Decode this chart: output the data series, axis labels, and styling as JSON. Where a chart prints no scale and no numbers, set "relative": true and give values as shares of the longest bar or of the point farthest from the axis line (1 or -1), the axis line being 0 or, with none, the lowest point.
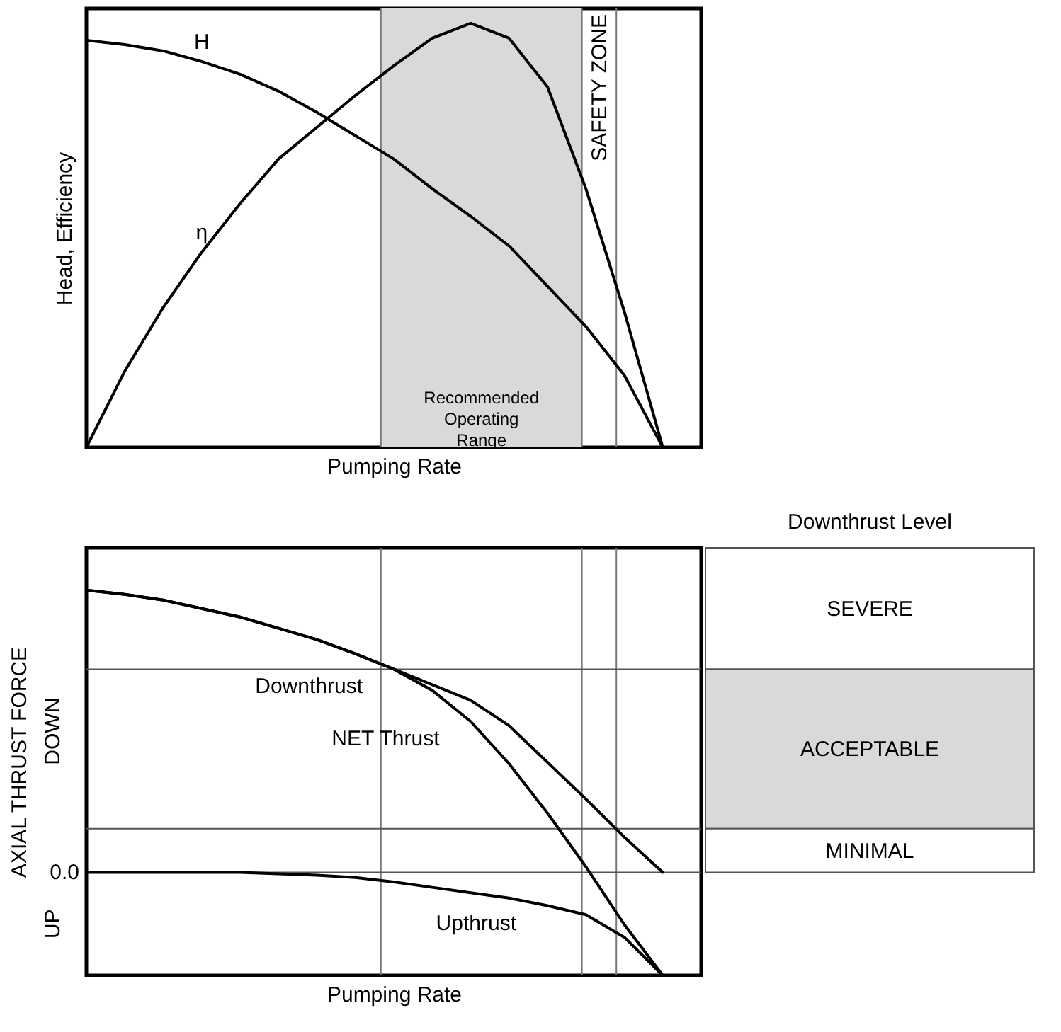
{
  "chart_data": [
    {
      "type": "line",
      "relative": true,
      "xlabel": "Pumping Rate",
      "ylabel": "Head, Efficiency",
      "categories": [
        null,
        null,
        null,
        null,
        null,
        null,
        null,
        null,
        null,
        null,
        null,
        null,
        null,
        null,
        null,
        null
      ],
      "series": [
        {
          "name": "H",
          "color": "#000000",
          "values": [
            0.96,
            0.95,
            0.935,
            0.91,
            0.88,
            0.84,
            0.79,
            0.735,
            0.68,
            0.61,
            0.545,
            0.475,
            0.38,
            0.285,
            0.17,
            0
          ]
        },
        {
          "name": "η",
          "color": "#000000",
          "values": [
            0,
            0.18,
            0.33,
            0.46,
            0.575,
            0.68,
            0.755,
            0.83,
            0.9,
            0.965,
            1,
            0.965,
            0.85,
            0.61,
            0.32,
            0
          ]
        }
      ],
      "annotations": [
        "Recommended Operating Range",
        "SAFETY ZONE"
      ]
    },
    {
      "type": "line",
      "relative": true,
      "xlabel": "Pumping Rate",
      "ylabel": "AXIAL THRUST FORCE",
      "categories": [
        null,
        null,
        null,
        null,
        null,
        null,
        null,
        null,
        null,
        null,
        null,
        null,
        null,
        null,
        null,
        null
      ],
      "series": [
        {
          "name": "Downthrust",
          "color": "#000000",
          "values": [
            1,
            0.985,
            0.965,
            0.935,
            0.905,
            0.865,
            0.825,
            0.775,
            0.72,
            0.665,
            0.61,
            0.52,
            0.39,
            0.26,
            0.125,
            0
          ]
        },
        {
          "name": "NET Thrust",
          "color": "#000000",
          "values": [
            1,
            0.985,
            0.965,
            0.935,
            0.905,
            0.865,
            0.825,
            0.775,
            0.72,
            0.645,
            0.535,
            0.385,
            0.21,
            0.02,
            -0.185,
            -0.365
          ]
        },
        {
          "name": "Upthrust",
          "color": "#000000",
          "values": [
            0,
            0,
            0,
            0,
            0,
            -0.005,
            -0.01,
            -0.018,
            -0.034,
            -0.053,
            -0.072,
            -0.091,
            -0.118,
            -0.15,
            -0.23,
            -0.365
          ]
        }
      ],
      "ref_lines": [
        {
          "axis": "y",
          "value": 0,
          "label": "0.0"
        },
        {
          "axis": "y",
          "value": 0.72,
          "label": null
        },
        {
          "axis": "y",
          "value": 0.155,
          "label": null
        }
      ],
      "annotations": [
        "DOWN",
        "UP"
      ]
    },
    {
      "type": "other",
      "title": "Downthrust Level",
      "annotations": [
        "SEVERE",
        "ACCEPTABLE",
        "MINIMAL"
      ]
    }
  ]
}
